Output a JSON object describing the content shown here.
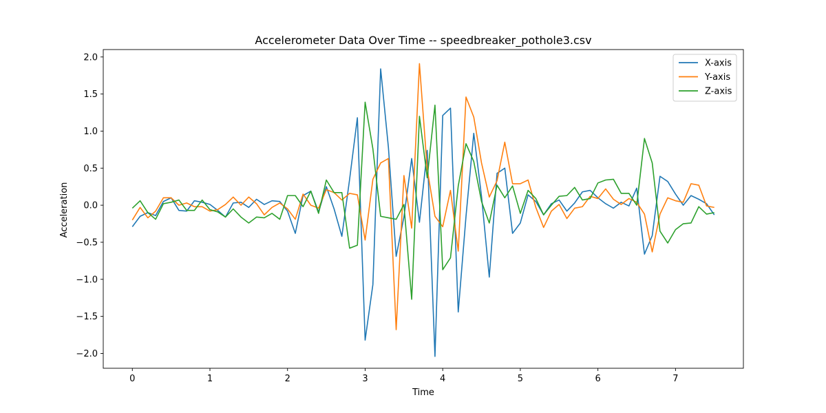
{
  "chart_data": {
    "type": "line",
    "title": "Accelerometer Data Over Time -- speedbreaker_pothole3.csv",
    "xlabel": "Time",
    "ylabel": "Acceleration",
    "xlim": [
      -0.375,
      7.875
    ],
    "ylim": [
      -2.2,
      2.1
    ],
    "x_ticks": [
      0,
      1,
      2,
      3,
      4,
      5,
      6,
      7
    ],
    "y_ticks": [
      -2.0,
      -1.5,
      -1.0,
      -0.5,
      0.0,
      0.5,
      1.0,
      1.5,
      2.0
    ],
    "grid": false,
    "legend_position": "top-right",
    "x": [
      0.0,
      0.1,
      0.2,
      0.3,
      0.4,
      0.5,
      0.6,
      0.7,
      0.8,
      0.9,
      1.0,
      1.1,
      1.2,
      1.3,
      1.4,
      1.5,
      1.6,
      1.7,
      1.8,
      1.9,
      2.0,
      2.1,
      2.2,
      2.3,
      2.4,
      2.5,
      2.6,
      2.7,
      2.8,
      2.9,
      3.0,
      3.1,
      3.2,
      3.3,
      3.4,
      3.5,
      3.6,
      3.7,
      3.8,
      3.9,
      4.0,
      4.1,
      4.2,
      4.3,
      4.4,
      4.5,
      4.6,
      4.7,
      4.8,
      4.9,
      5.0,
      5.1,
      5.2,
      5.3,
      5.4,
      5.5,
      5.6,
      5.7,
      5.8,
      5.9,
      6.0,
      6.1,
      6.2,
      6.3,
      6.4,
      6.5,
      6.6,
      6.7,
      6.8,
      6.9,
      7.0,
      7.1,
      7.2,
      7.3,
      7.4,
      7.5
    ],
    "series": [
      {
        "name": "X-axis",
        "color": "#1f77b4",
        "values": [
          -0.29,
          -0.15,
          -0.1,
          -0.14,
          0.05,
          0.1,
          -0.07,
          -0.08,
          0.06,
          0.04,
          0.01,
          -0.07,
          -0.16,
          0.03,
          0.04,
          -0.03,
          0.08,
          0.01,
          0.06,
          0.05,
          -0.08,
          -0.38,
          0.13,
          0.19,
          -0.09,
          0.25,
          -0.05,
          -0.42,
          0.35,
          1.18,
          -1.82,
          -1.07,
          1.84,
          0.78,
          -0.69,
          -0.16,
          0.63,
          -0.23,
          0.74,
          -2.04,
          1.21,
          1.31,
          -1.44,
          -0.15,
          0.97,
          0.12,
          -0.97,
          0.43,
          0.5,
          -0.38,
          -0.24,
          0.14,
          0.05,
          -0.13,
          0.02,
          0.07,
          -0.08,
          0.03,
          0.18,
          0.2,
          0.1,
          0.02,
          -0.04,
          0.04,
          -0.01,
          0.23,
          -0.66,
          -0.41,
          0.39,
          0.32,
          0.15,
          0.0,
          0.13,
          0.08,
          0.02,
          -0.13
        ]
      },
      {
        "name": "Y-axis",
        "color": "#ff7f0e",
        "values": [
          -0.2,
          -0.03,
          -0.17,
          -0.08,
          0.1,
          0.1,
          0.0,
          0.03,
          -0.02,
          -0.02,
          -0.08,
          -0.06,
          0.01,
          0.11,
          0.0,
          0.11,
          0.02,
          -0.13,
          -0.03,
          0.03,
          -0.05,
          -0.19,
          0.15,
          0.0,
          -0.04,
          0.21,
          0.17,
          0.07,
          0.16,
          0.14,
          -0.47,
          0.35,
          0.57,
          0.63,
          -1.68,
          0.4,
          -0.31,
          1.91,
          0.49,
          -0.15,
          -0.29,
          0.2,
          -0.62,
          1.46,
          1.19,
          0.57,
          0.11,
          0.33,
          0.85,
          0.29,
          0.29,
          0.34,
          -0.03,
          -0.3,
          -0.08,
          0.01,
          -0.18,
          -0.04,
          -0.02,
          0.12,
          0.09,
          0.22,
          0.08,
          0.01,
          0.09,
          0.04,
          -0.12,
          -0.63,
          -0.12,
          0.1,
          0.06,
          0.04,
          0.29,
          0.27,
          -0.01,
          -0.03
        ]
      },
      {
        "name": "Z-axis",
        "color": "#2ca02c",
        "values": [
          -0.04,
          0.06,
          -0.1,
          -0.19,
          0.02,
          0.04,
          0.07,
          -0.07,
          -0.07,
          0.07,
          -0.06,
          -0.09,
          -0.16,
          -0.05,
          -0.16,
          -0.24,
          -0.16,
          -0.17,
          -0.11,
          -0.19,
          0.13,
          0.13,
          -0.02,
          0.19,
          -0.11,
          0.34,
          0.17,
          0.17,
          -0.58,
          -0.54,
          1.39,
          0.76,
          -0.15,
          -0.17,
          -0.19,
          0.01,
          -1.27,
          1.2,
          0.37,
          1.35,
          -0.87,
          -0.71,
          0.26,
          0.83,
          0.59,
          0.05,
          -0.24,
          0.27,
          0.1,
          0.26,
          -0.11,
          0.2,
          0.09,
          -0.13,
          0.0,
          0.12,
          0.13,
          0.24,
          0.07,
          0.09,
          0.3,
          0.34,
          0.35,
          0.16,
          0.16,
          0.0,
          0.9,
          0.57,
          -0.35,
          -0.51,
          -0.33,
          -0.25,
          -0.24,
          -0.02,
          -0.12,
          -0.1
        ]
      }
    ]
  }
}
